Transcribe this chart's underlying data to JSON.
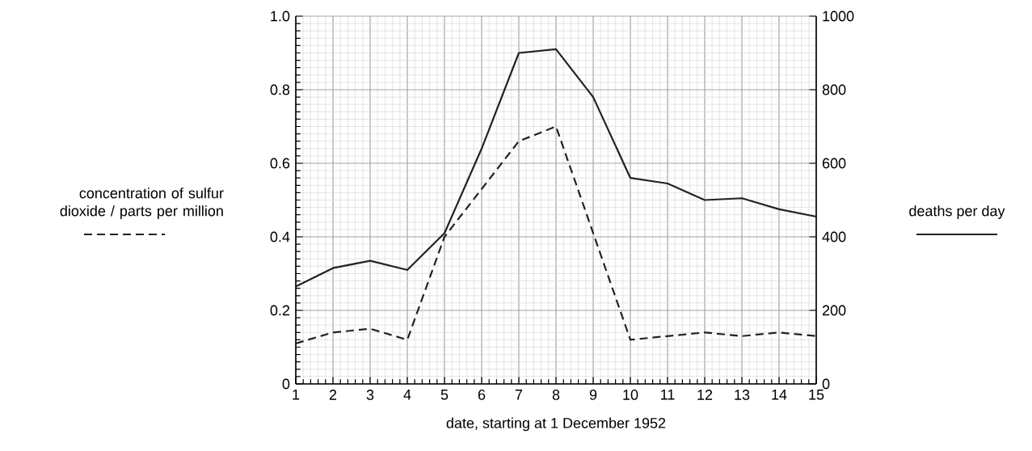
{
  "chart_data": {
    "type": "line",
    "xlabel": "date, starting at 1 December 1952",
    "ylabel": "concentration of sulfur dioxide / parts per million",
    "y2label": "deaths per day",
    "x": [
      1,
      2,
      3,
      4,
      5,
      6,
      7,
      8,
      9,
      10,
      11,
      12,
      13,
      14,
      15
    ],
    "xlim": [
      1,
      15
    ],
    "xticks": [
      1,
      2,
      3,
      4,
      5,
      6,
      7,
      8,
      9,
      10,
      11,
      12,
      13,
      14,
      15
    ],
    "ylim": [
      0,
      1
    ],
    "yticks": [
      0,
      0.2,
      0.4,
      0.6,
      0.8,
      {
        "value": 1,
        "label": "1.0"
      }
    ],
    "y2lim": [
      0,
      1000
    ],
    "y2ticks": [
      0,
      200,
      400,
      600,
      800,
      1000
    ],
    "grid": true,
    "marker": "none",
    "series": [
      {
        "color": "#222222",
        "line_style": "dashed",
        "values": [
          0.11,
          0.14,
          0.15,
          0.12,
          0.4,
          0.53,
          0.66,
          0.7,
          0.41,
          0.12,
          0.13,
          0.14,
          0.13,
          0.14,
          0.13
        ]
      },
      {
        "color": "#222222",
        "line_style": "solid",
        "axis": "y2",
        "values": [
          265,
          315,
          335,
          310,
          410,
          640,
          900,
          910,
          780,
          560,
          545,
          500,
          505,
          475,
          455
        ]
      }
    ]
  }
}
